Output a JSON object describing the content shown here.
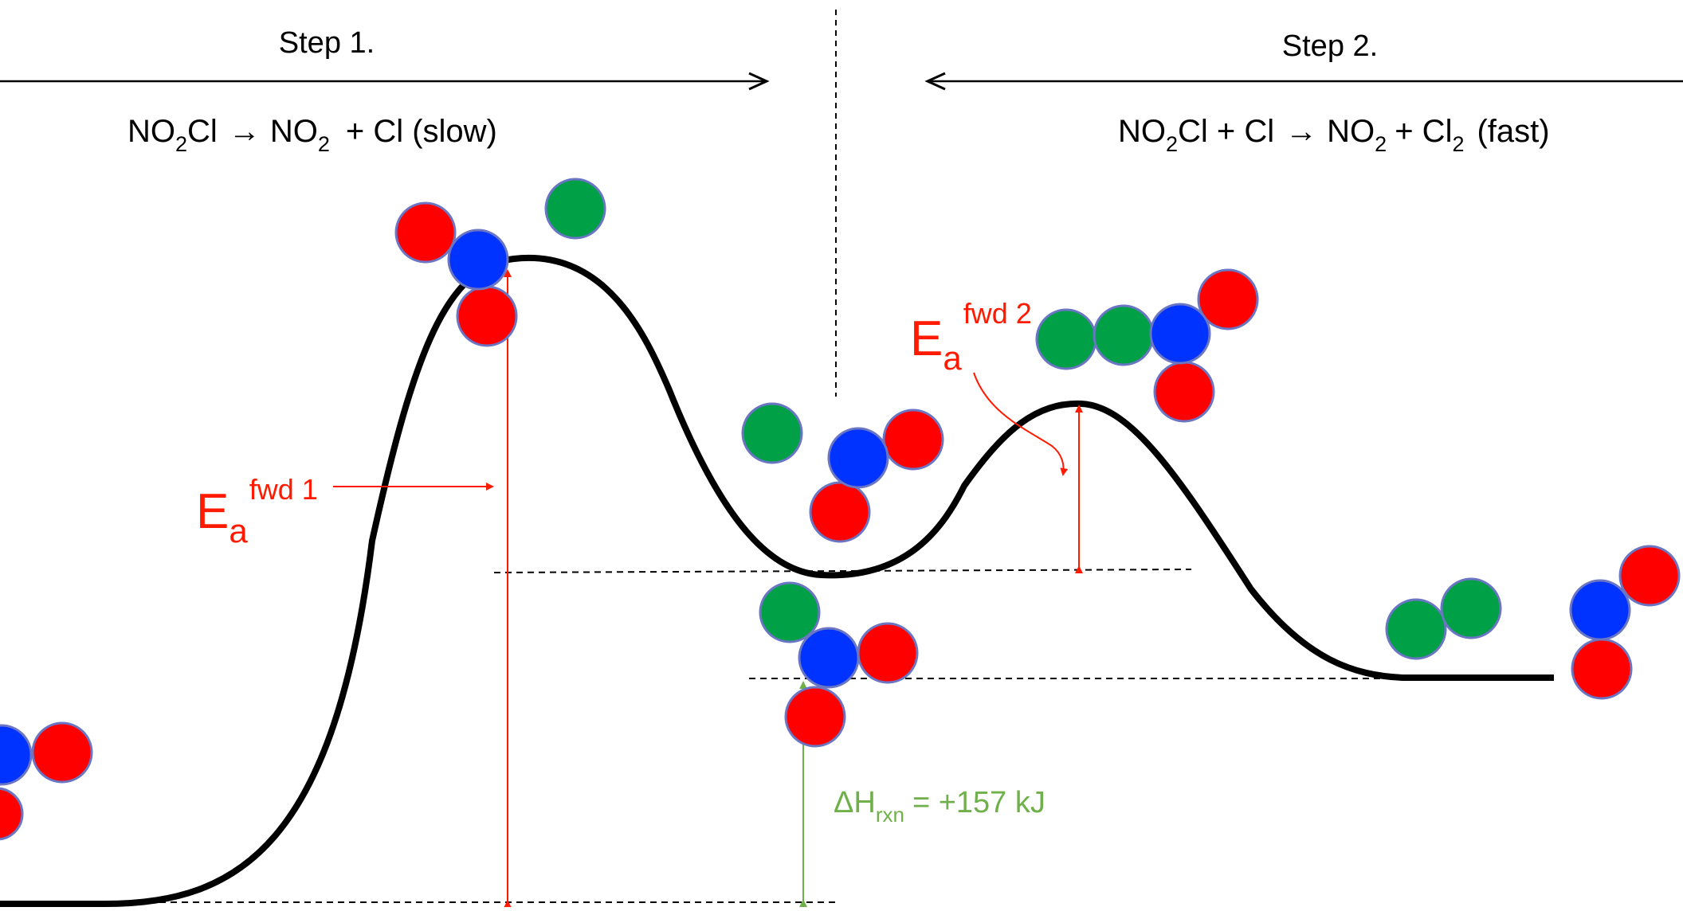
{
  "step1": {
    "title": "Step 1.",
    "eq_a": "NO",
    "eq_sub1": "2",
    "eq_b": "Cl",
    "eq_arrow": "→",
    "eq_c": "NO",
    "eq_sub2": "2",
    "eq_d": "+ Cl (slow)"
  },
  "step2": {
    "title": "Step 2.",
    "eq_a": "NO",
    "eq_sub1": "2",
    "eq_b": "Cl + Cl",
    "eq_arrow": "→",
    "eq_c": "NO",
    "eq_sub2": "2",
    "eq_d": "+ Cl",
    "eq_sub3": "2",
    "eq_e": "(fast)"
  },
  "ea1": {
    "base": "E",
    "sub": "a",
    "sup": "fwd 1"
  },
  "ea2": {
    "base": "E",
    "sub": "a",
    "sup": "fwd 2"
  },
  "dh": {
    "base": "ΔH",
    "sub": "rxn",
    "value": "= +157 kJ"
  },
  "colors": {
    "nitrogen": "#0033ff",
    "oxygen": "#ff0000",
    "chlorine": "#00a046",
    "atom_outline": "#6a75c4",
    "curve": "#000000",
    "activation_energy": "#ff1a00",
    "enthalpy": "#6fb04a"
  }
}
